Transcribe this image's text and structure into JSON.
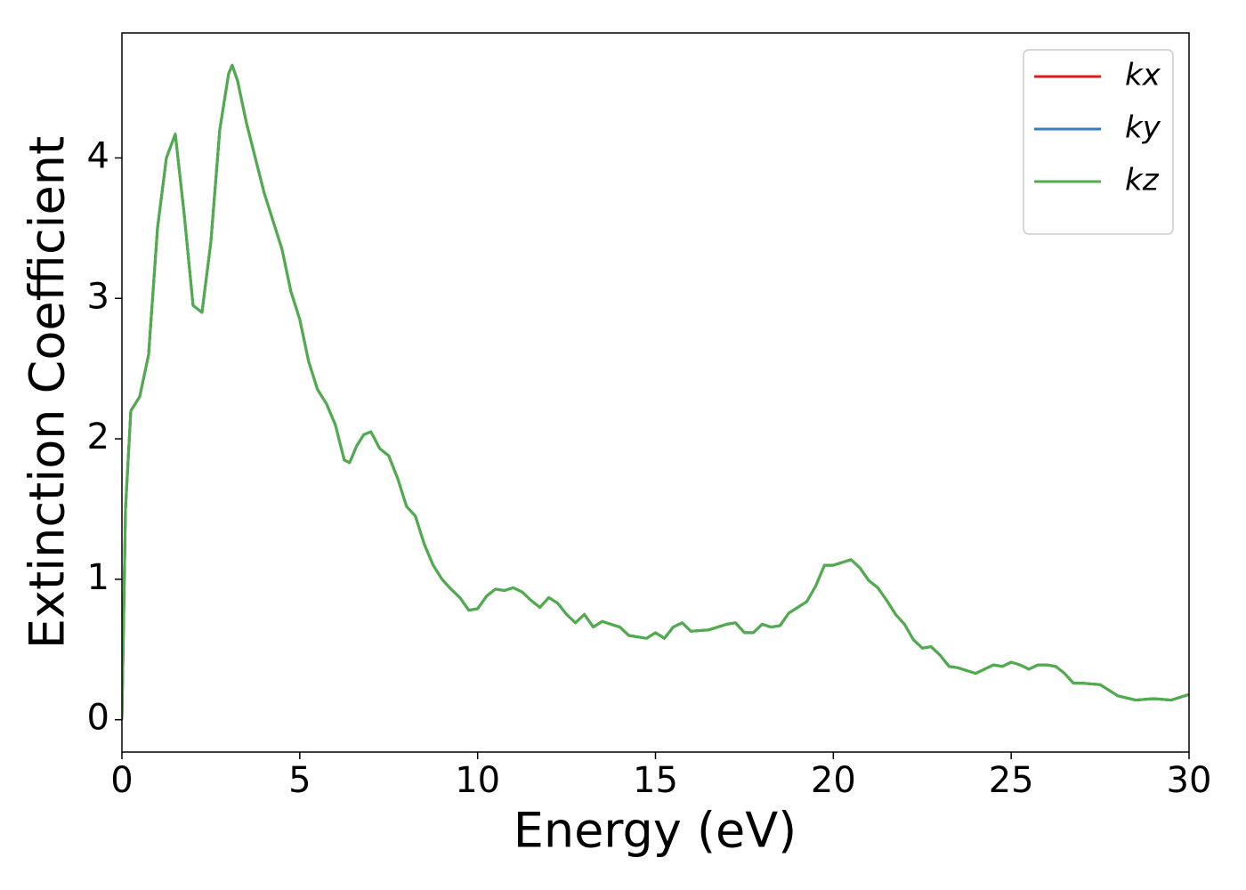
{
  "chart_data": {
    "type": "line",
    "xlabel": "Energy (eV)",
    "ylabel": "Extinction Coefficient",
    "x": [
      0,
      0.1,
      0.25,
      0.5,
      0.75,
      1.0,
      1.25,
      1.5,
      1.75,
      2.0,
      2.25,
      2.5,
      2.75,
      3.0,
      3.1,
      3.25,
      3.5,
      3.75,
      4.0,
      4.25,
      4.5,
      4.75,
      5.0,
      5.25,
      5.5,
      5.75,
      6.0,
      6.25,
      6.4,
      6.6,
      6.8,
      7.0,
      7.25,
      7.5,
      7.75,
      8.0,
      8.25,
      8.5,
      8.75,
      9.0,
      9.25,
      9.5,
      9.75,
      10.0,
      10.25,
      10.5,
      10.75,
      11.0,
      11.25,
      11.5,
      11.75,
      12.0,
      12.25,
      12.5,
      12.75,
      13.0,
      13.25,
      13.5,
      13.75,
      14.0,
      14.25,
      14.5,
      14.75,
      15.0,
      15.25,
      15.5,
      15.75,
      16.0,
      16.5,
      17.0,
      17.25,
      17.5,
      17.75,
      18.0,
      18.25,
      18.5,
      18.75,
      19.0,
      19.25,
      19.5,
      19.75,
      20.0,
      20.25,
      20.5,
      20.75,
      21.0,
      21.25,
      21.5,
      21.75,
      22.0,
      22.25,
      22.5,
      22.75,
      23.0,
      23.25,
      23.5,
      24.0,
      24.5,
      24.75,
      25.0,
      25.25,
      25.5,
      25.75,
      26.0,
      26.25,
      26.5,
      26.75,
      27.0,
      27.5,
      28.0,
      28.5,
      29.0,
      29.5,
      30.0
    ],
    "series": [
      {
        "name": "kx",
        "color": "#e41a1c",
        "values": [
          0,
          1.5,
          2.2,
          2.3,
          2.6,
          3.5,
          4.0,
          4.17,
          3.6,
          2.95,
          2.9,
          3.4,
          4.2,
          4.6,
          4.66,
          4.55,
          4.25,
          4.0,
          3.75,
          3.55,
          3.35,
          3.05,
          2.85,
          2.55,
          2.35,
          2.25,
          2.1,
          1.85,
          1.83,
          1.95,
          2.03,
          2.05,
          1.93,
          1.88,
          1.72,
          1.52,
          1.45,
          1.25,
          1.1,
          1.0,
          0.93,
          0.87,
          0.78,
          0.79,
          0.88,
          0.93,
          0.92,
          0.94,
          0.91,
          0.85,
          0.8,
          0.87,
          0.83,
          0.75,
          0.69,
          0.75,
          0.66,
          0.7,
          0.68,
          0.66,
          0.6,
          0.59,
          0.58,
          0.62,
          0.58,
          0.66,
          0.69,
          0.63,
          0.64,
          0.68,
          0.69,
          0.62,
          0.62,
          0.68,
          0.66,
          0.67,
          0.76,
          0.8,
          0.84,
          0.95,
          1.1,
          1.1,
          1.12,
          1.14,
          1.08,
          0.99,
          0.94,
          0.85,
          0.75,
          0.68,
          0.57,
          0.51,
          0.52,
          0.46,
          0.38,
          0.37,
          0.33,
          0.39,
          0.38,
          0.41,
          0.39,
          0.36,
          0.39,
          0.39,
          0.38,
          0.33,
          0.26,
          0.26,
          0.25,
          0.17,
          0.14,
          0.15,
          0.14,
          0.18
        ]
      },
      {
        "name": "ky",
        "color": "#377eb8",
        "values": [
          0,
          1.5,
          2.2,
          2.3,
          2.6,
          3.5,
          4.0,
          4.17,
          3.6,
          2.95,
          2.9,
          3.4,
          4.2,
          4.6,
          4.66,
          4.55,
          4.25,
          4.0,
          3.75,
          3.55,
          3.35,
          3.05,
          2.85,
          2.55,
          2.35,
          2.25,
          2.1,
          1.85,
          1.83,
          1.95,
          2.03,
          2.05,
          1.93,
          1.88,
          1.72,
          1.52,
          1.45,
          1.25,
          1.1,
          1.0,
          0.93,
          0.87,
          0.78,
          0.79,
          0.88,
          0.93,
          0.92,
          0.94,
          0.91,
          0.85,
          0.8,
          0.87,
          0.83,
          0.75,
          0.69,
          0.75,
          0.66,
          0.7,
          0.68,
          0.66,
          0.6,
          0.59,
          0.58,
          0.62,
          0.58,
          0.66,
          0.69,
          0.63,
          0.64,
          0.68,
          0.69,
          0.62,
          0.62,
          0.68,
          0.66,
          0.67,
          0.76,
          0.8,
          0.84,
          0.95,
          1.1,
          1.1,
          1.12,
          1.14,
          1.08,
          0.99,
          0.94,
          0.85,
          0.75,
          0.68,
          0.57,
          0.51,
          0.52,
          0.46,
          0.38,
          0.37,
          0.33,
          0.39,
          0.38,
          0.41,
          0.39,
          0.36,
          0.39,
          0.39,
          0.38,
          0.33,
          0.26,
          0.26,
          0.25,
          0.17,
          0.14,
          0.15,
          0.14,
          0.18
        ]
      },
      {
        "name": "kz",
        "color": "#4daf4a",
        "values": [
          0,
          1.5,
          2.2,
          2.3,
          2.6,
          3.5,
          4.0,
          4.17,
          3.6,
          2.95,
          2.9,
          3.4,
          4.2,
          4.6,
          4.66,
          4.55,
          4.25,
          4.0,
          3.75,
          3.55,
          3.35,
          3.05,
          2.85,
          2.55,
          2.35,
          2.25,
          2.1,
          1.85,
          1.83,
          1.95,
          2.03,
          2.05,
          1.93,
          1.88,
          1.72,
          1.52,
          1.45,
          1.25,
          1.1,
          1.0,
          0.93,
          0.87,
          0.78,
          0.79,
          0.88,
          0.93,
          0.92,
          0.94,
          0.91,
          0.85,
          0.8,
          0.87,
          0.83,
          0.75,
          0.69,
          0.75,
          0.66,
          0.7,
          0.68,
          0.66,
          0.6,
          0.59,
          0.58,
          0.62,
          0.58,
          0.66,
          0.69,
          0.63,
          0.64,
          0.68,
          0.69,
          0.62,
          0.62,
          0.68,
          0.66,
          0.67,
          0.76,
          0.8,
          0.84,
          0.95,
          1.1,
          1.1,
          1.12,
          1.14,
          1.08,
          0.99,
          0.94,
          0.85,
          0.75,
          0.68,
          0.57,
          0.51,
          0.52,
          0.46,
          0.38,
          0.37,
          0.33,
          0.39,
          0.38,
          0.41,
          0.39,
          0.36,
          0.39,
          0.39,
          0.38,
          0.33,
          0.26,
          0.26,
          0.25,
          0.17,
          0.14,
          0.15,
          0.14,
          0.18
        ]
      }
    ],
    "xlim": [
      0,
      30
    ],
    "ylim": [
      -0.23,
      4.89
    ],
    "xticks": [
      0,
      5,
      10,
      15,
      20,
      25,
      30
    ],
    "yticks": [
      0,
      1,
      2,
      3,
      4
    ],
    "grid": false,
    "legend": "upper right"
  }
}
